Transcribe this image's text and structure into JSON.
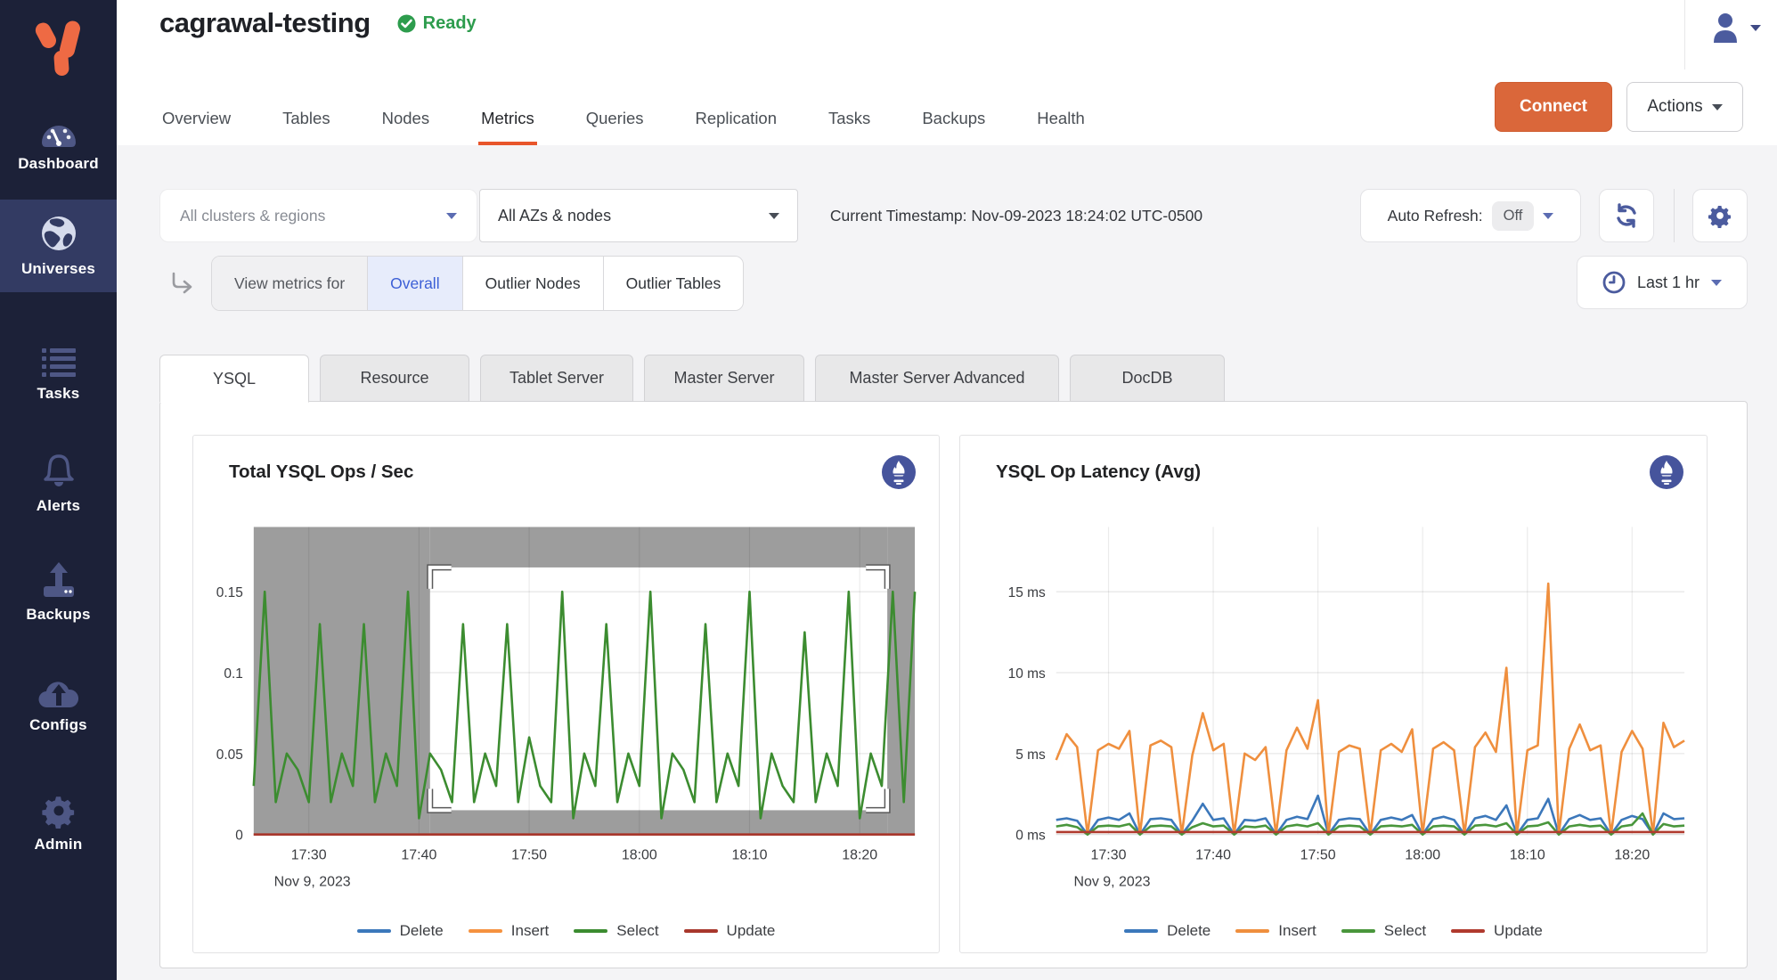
{
  "sidebar": {
    "items": [
      {
        "label": "Dashboard",
        "icon": "gauge-icon",
        "active": false
      },
      {
        "label": "Universes",
        "icon": "globe-icon",
        "active": true
      },
      {
        "label": "Tasks",
        "icon": "task-list-icon",
        "active": false
      },
      {
        "label": "Alerts",
        "icon": "bell-icon",
        "active": false
      },
      {
        "label": "Backups",
        "icon": "backup-upload-icon",
        "active": false
      },
      {
        "label": "Configs",
        "icon": "cloud-upload-icon",
        "active": false
      },
      {
        "label": "Admin",
        "icon": "gear-icon",
        "active": false
      }
    ]
  },
  "header": {
    "title": "cagrawal-testing",
    "status": "Ready",
    "tabs": [
      "Overview",
      "Tables",
      "Nodes",
      "Metrics",
      "Queries",
      "Replication",
      "Tasks",
      "Backups",
      "Health"
    ],
    "active_tab": "Metrics",
    "connect_label": "Connect",
    "actions_label": "Actions"
  },
  "filters": {
    "clusters_dropdown": "All clusters & regions",
    "az_dropdown": "All AZs & nodes",
    "timestamp": "Current Timestamp: Nov-09-2023 18:24:02 UTC-0500",
    "auto_refresh_label": "Auto Refresh:",
    "auto_refresh_value": "Off",
    "view_metrics_label": "View metrics for",
    "view_metrics_options": [
      "Overall",
      "Outlier Nodes",
      "Outlier Tables"
    ],
    "view_metrics_selected": "Overall",
    "time_range": "Last 1 hr"
  },
  "metric_tabs": {
    "items": [
      "YSQL",
      "Resource",
      "Tablet Server",
      "Master Server",
      "Master Server Advanced",
      "DocDB"
    ],
    "active": "YSQL"
  },
  "colors": {
    "accent_orange": "#e8552b",
    "connect_button": "#da673a",
    "sidebar_bg": "#1c2138",
    "sidebar_active_bg": "#333b63",
    "sidebar_icon": "#4e5785",
    "ready_green": "#2d9c4d",
    "selected_blue": "#3c5fd6",
    "indigo_icon": "#4b5b9e",
    "zoom_mask_gray": "#9d9d9d"
  },
  "icons": [
    "yugabyte-logo",
    "gauge-icon",
    "globe-icon",
    "task-list-icon",
    "bell-icon",
    "backup-upload-icon",
    "cloud-upload-icon",
    "gear-icon",
    "user-icon",
    "caret-down-icon",
    "check-circle-icon",
    "refresh-icon",
    "settings-gear-icon",
    "return-arrow-icon",
    "clock-icon",
    "prometheus-icon"
  ],
  "chart_data": [
    {
      "type": "line",
      "title": "Total YSQL Ops / Sec",
      "x_start": "17:25",
      "x_end": "18:25",
      "points_interval_minutes": 1,
      "x_ticks": [
        "17:30",
        "17:40",
        "17:50",
        "18:00",
        "18:10",
        "18:20"
      ],
      "x_tick_minutes": [
        5,
        15,
        25,
        35,
        45,
        55
      ],
      "x_date": "Nov 9, 2023",
      "ylim": [
        0,
        0.19
      ],
      "yticks": [
        0,
        0.05,
        0.1,
        0.15
      ],
      "ytick_labels": [
        "0",
        "0.05",
        "0.1",
        "0.15"
      ],
      "grid": true,
      "legend_position": "bottom",
      "zoom_selection": {
        "x_minutes": [
          16,
          57.5
        ],
        "y_values": [
          0.015,
          0.165
        ],
        "mask_color": "#9d9d9d"
      },
      "series": [
        {
          "name": "Delete",
          "color": "#3c78bb",
          "flat": 0
        },
        {
          "name": "Insert",
          "color": "#f59240",
          "flat": 0
        },
        {
          "name": "Select",
          "color": "#3c8c30",
          "values": [
            0.03,
            0.15,
            0.02,
            0.05,
            0.04,
            0.02,
            0.13,
            0.02,
            0.05,
            0.03,
            0.13,
            0.02,
            0.05,
            0.03,
            0.15,
            0.01,
            0.05,
            0.04,
            0.02,
            0.13,
            0.02,
            0.05,
            0.03,
            0.13,
            0.02,
            0.06,
            0.03,
            0.02,
            0.15,
            0.01,
            0.05,
            0.03,
            0.13,
            0.02,
            0.05,
            0.03,
            0.15,
            0.01,
            0.05,
            0.04,
            0.02,
            0.13,
            0.02,
            0.05,
            0.03,
            0.15,
            0.01,
            0.05,
            0.03,
            0.02,
            0.125,
            0.02,
            0.05,
            0.03,
            0.15,
            0.01,
            0.05,
            0.03,
            0.15,
            0.02,
            0.15
          ]
        },
        {
          "name": "Update",
          "color": "#a8372c",
          "flat": 0
        }
      ]
    },
    {
      "type": "line",
      "title": "YSQL Op Latency (Avg)",
      "x_start": "17:25",
      "x_end": "18:25",
      "points_interval_minutes": 1,
      "x_ticks": [
        "17:30",
        "17:40",
        "17:50",
        "18:00",
        "18:10",
        "18:20"
      ],
      "x_tick_minutes": [
        5,
        15,
        25,
        35,
        45,
        55
      ],
      "x_date": "Nov 9, 2023",
      "ylim": [
        0,
        19
      ],
      "yticks": [
        0,
        5,
        10,
        15
      ],
      "ytick_labels": [
        "0 ms",
        "5 ms",
        "10 ms",
        "15 ms"
      ],
      "grid": true,
      "legend_position": "bottom",
      "series": [
        {
          "name": "Delete",
          "color": "#3c78bb",
          "values": [
            0.9,
            1.0,
            0.85,
            0,
            0.9,
            1.05,
            0.9,
            1.3,
            0,
            0.95,
            1.0,
            0.9,
            0,
            0.85,
            1.9,
            0.9,
            1.0,
            0,
            0.9,
            0.85,
            1.0,
            0,
            0.9,
            1.1,
            0.95,
            2.4,
            0,
            0.9,
            1.0,
            0.95,
            0,
            0.9,
            1.05,
            0.9,
            1.2,
            0,
            0.95,
            1.1,
            0.9,
            0,
            1.0,
            1.15,
            0.9,
            1.8,
            0,
            0.9,
            1.0,
            2.2,
            0,
            0.95,
            1.2,
            0.9,
            1.0,
            0,
            0.9,
            1.15,
            0.95,
            0,
            1.3,
            0.95,
            1.0
          ]
        },
        {
          "name": "Insert",
          "color": "#ef8f3e",
          "values": [
            4.6,
            6.2,
            5.4,
            0,
            5.2,
            5.6,
            5.3,
            6.4,
            0,
            5.5,
            5.8,
            5.4,
            0,
            4.9,
            7.5,
            5.2,
            5.6,
            0,
            5.0,
            4.6,
            5.4,
            0,
            5.2,
            6.6,
            5.3,
            8.3,
            0,
            5.1,
            5.5,
            5.3,
            0,
            5.2,
            5.6,
            5.1,
            6.5,
            0,
            5.3,
            5.7,
            5.2,
            0,
            5.4,
            6.3,
            5.1,
            10.3,
            0,
            5.2,
            5.5,
            15.5,
            0,
            5.3,
            6.8,
            5.2,
            5.5,
            0,
            5.1,
            6.4,
            5.3,
            0,
            6.9,
            5.4,
            5.8
          ]
        },
        {
          "name": "Select",
          "color": "#49963c",
          "values": [
            0.5,
            0.6,
            0.45,
            0,
            0.5,
            0.55,
            0.5,
            0.65,
            0,
            0.5,
            0.55,
            0.5,
            0,
            0.45,
            0.7,
            0.5,
            0.55,
            0,
            0.5,
            0.45,
            0.55,
            0,
            0.5,
            0.6,
            0.5,
            0.7,
            0,
            0.5,
            0.55,
            0.5,
            0,
            0.5,
            0.55,
            0.5,
            0.6,
            0,
            0.5,
            0.55,
            0.5,
            0,
            0.55,
            0.6,
            0.5,
            0.7,
            0,
            0.5,
            0.55,
            0.75,
            0,
            0.5,
            0.6,
            0.5,
            0.55,
            0,
            0.5,
            0.6,
            1.3,
            0,
            0.65,
            0.5,
            0.55
          ]
        },
        {
          "name": "Update",
          "color": "#b03a2e",
          "flat": 0.15
        }
      ]
    }
  ]
}
